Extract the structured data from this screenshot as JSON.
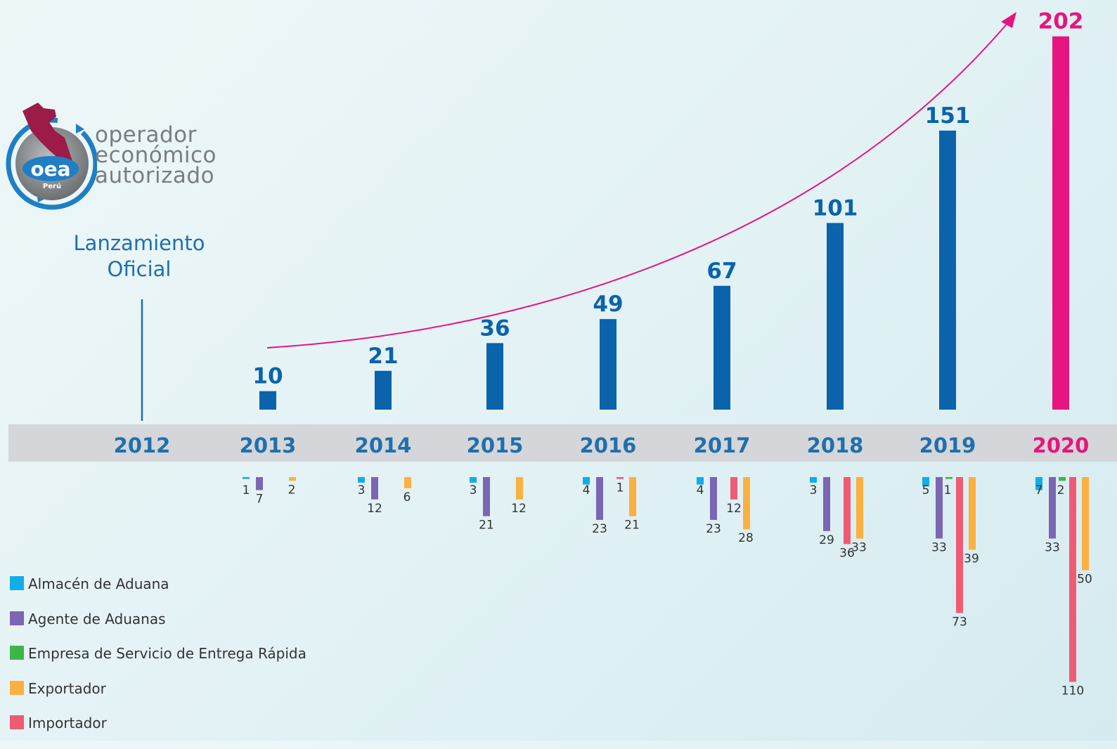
{
  "logo": {
    "badge": "oea",
    "country": "Perú",
    "line1": "operador",
    "line2": "económico",
    "line3": "autorizado"
  },
  "launch_note": {
    "line1": "Lanzamiento",
    "line2": "Oficial",
    "year": "2012"
  },
  "colors": {
    "total": "#0a63ab",
    "highlight": "#e6157f",
    "axis_band": "#d4d6d9",
    "almacen": "#10aee8",
    "agente": "#7b66b3",
    "empresa": "#3db54a",
    "exportador": "#fbb040",
    "importador": "#ef5b73"
  },
  "legend": [
    {
      "key": "almacen",
      "label": "Almacén de Aduana"
    },
    {
      "key": "agente",
      "label": "Agente de Aduanas"
    },
    {
      "key": "empresa",
      "label": "Empresa de Servicio de Entrega Rápida"
    },
    {
      "key": "exportador",
      "label": "Exportador"
    },
    {
      "key": "importador",
      "label": "Importador"
    }
  ],
  "chart_data": {
    "type": "bar",
    "title": "",
    "categories": [
      "2012",
      "2013",
      "2014",
      "2015",
      "2016",
      "2017",
      "2018",
      "2019",
      "2020"
    ],
    "totals": [
      null,
      10,
      21,
      36,
      49,
      67,
      101,
      151,
      202
    ],
    "highlight_category": "2020",
    "trend_arrow": true,
    "breakdown": {
      "series": [
        {
          "key": "almacen",
          "name": "Almacén de Aduana",
          "values": [
            null,
            1,
            3,
            3,
            4,
            4,
            3,
            5,
            7
          ]
        },
        {
          "key": "agente",
          "name": "Agente de Aduanas",
          "values": [
            null,
            7,
            12,
            21,
            23,
            23,
            29,
            33,
            33
          ]
        },
        {
          "key": "empresa",
          "name": "Empresa de Servicio de Entrega Rápida",
          "values": [
            null,
            null,
            null,
            null,
            null,
            null,
            null,
            1,
            2
          ]
        },
        {
          "key": "importador",
          "name": "Importador",
          "values": [
            null,
            null,
            null,
            null,
            1,
            12,
            36,
            73,
            110
          ]
        },
        {
          "key": "exportador",
          "name": "Exportador",
          "values": [
            null,
            2,
            6,
            12,
            21,
            28,
            33,
            39,
            50
          ]
        }
      ]
    }
  }
}
